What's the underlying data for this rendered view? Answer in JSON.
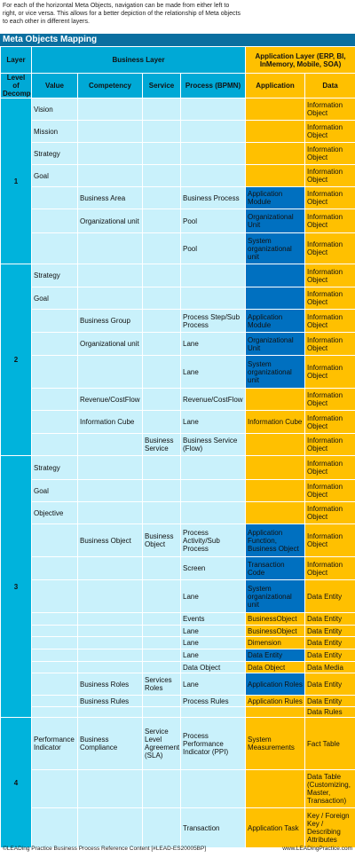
{
  "intro": "For each of the horizontal Meta Objects, navigation can be made from either left to right, or vice versa. This allows for a better depiction of the relationship of Meta objects to each other in different layers.",
  "title": "Meta Objects Mapping",
  "header": {
    "layer": "Layer",
    "business_layer": "Business Layer",
    "application_layer": "Application Layer (ERP, BI, InMemory, Mobile, SOA)",
    "level": "Level of Decomp.",
    "columns": [
      "Value",
      "Competency",
      "Service",
      "Process (BPMN)",
      "Application",
      "Data"
    ]
  },
  "groups": [
    {
      "layer": "1",
      "rows": [
        {
          "cells": [
            "Vision",
            null,
            null,
            null,
            null,
            "Information Object"
          ],
          "app_color": "#ffc000"
        },
        {
          "cells": [
            "Mission",
            null,
            null,
            null,
            null,
            "Information Object"
          ],
          "app_color": "#ffc000"
        },
        {
          "cells": [
            "Strategy",
            null,
            null,
            null,
            null,
            "Information Object"
          ],
          "app_color": "#ffc000"
        },
        {
          "cells": [
            "Goal",
            null,
            null,
            null,
            null,
            "Information Object"
          ],
          "app_color": "#ffc000"
        },
        {
          "cells": [
            null,
            "Business Area",
            null,
            "Business Process",
            "Application Module",
            "Information Object"
          ],
          "app_color": "#0070c0"
        },
        {
          "cells": [
            null,
            "Organizational unit",
            null,
            "Pool",
            "Organizational Unit",
            "Information Object"
          ],
          "app_color": "#0070c0"
        },
        {
          "cells": [
            null,
            null,
            null,
            "Pool",
            "System organizational unit",
            "Information Object"
          ],
          "app_color": "#0070c0"
        }
      ]
    },
    {
      "layer": "2",
      "rows": [
        {
          "cells": [
            "Strategy",
            null,
            null,
            null,
            null,
            "Information Object"
          ],
          "app_color": "#0070c0"
        },
        {
          "cells": [
            "Goal",
            null,
            null,
            null,
            null,
            "Information Object"
          ],
          "app_color": "#0070c0"
        },
        {
          "cells": [
            null,
            "Business Group",
            null,
            "Process Step/Sub Process",
            "Application Module",
            "Information Object"
          ],
          "app_color": "#0070c0"
        },
        {
          "cells": [
            null,
            "Organizational unit",
            null,
            "Lane",
            "Organizational Unit",
            "Information Object"
          ],
          "app_color": "#0070c0"
        },
        {
          "cells": [
            null,
            null,
            null,
            "Lane",
            "System organizational unit",
            "Information Object"
          ],
          "app_color": "#0070c0"
        },
        {
          "cells": [
            null,
            "Revenue/CostFlow",
            null,
            "Revenue/CostFlow",
            null,
            "Information Object"
          ],
          "app_color": "#ffc000"
        },
        {
          "cells": [
            null,
            "Information Cube",
            null,
            "Lane",
            "Information Cube",
            "Information Object"
          ],
          "app_color": "#ffc000"
        },
        {
          "cells": [
            null,
            null,
            "Business Service",
            "Business Service (Flow)",
            null,
            "Information Object"
          ],
          "app_color": "#ffc000"
        }
      ]
    },
    {
      "layer": "3",
      "rows": [
        {
          "cells": [
            "Strategy",
            null,
            null,
            null,
            null,
            "Information Object"
          ],
          "app_color": "#ffc000"
        },
        {
          "cells": [
            "Goal",
            null,
            null,
            null,
            null,
            "Information Object"
          ],
          "app_color": "#ffc000"
        },
        {
          "cells": [
            "Objective",
            null,
            null,
            null,
            null,
            "Information Object"
          ],
          "app_color": "#ffc000"
        },
        {
          "cells": [
            null,
            "Business Object",
            "Business Object",
            "Process Activity/Sub Process",
            "Application Function, Business Object",
            "Information Object"
          ],
          "app_color": "#0070c0"
        },
        {
          "cells": [
            null,
            null,
            null,
            "Screen",
            "Transaction Code",
            "Information Object"
          ],
          "app_color": "#0070c0"
        },
        {
          "cells": [
            null,
            null,
            null,
            "Lane",
            "System organizational unit",
            "Data Entity"
          ],
          "app_color": "#0070c0"
        },
        {
          "cells": [
            null,
            null,
            null,
            "Events",
            "BusinessObject",
            "Data Entity"
          ],
          "app_color": "#ffc000"
        },
        {
          "cells": [
            null,
            null,
            null,
            "Lane",
            "BusinessObject",
            "Data Entity"
          ],
          "app_color": "#ffc000"
        },
        {
          "cells": [
            null,
            null,
            null,
            "Lane",
            "Dimension",
            "Data Entity"
          ],
          "app_color": "#ffc000"
        },
        {
          "cells": [
            null,
            null,
            null,
            "Lane",
            "Data Entity",
            "Data Entity"
          ],
          "app_color": "#0070c0"
        },
        {
          "cells": [
            null,
            null,
            null,
            "Data Object",
            "Data Object",
            "Data Media"
          ],
          "app_color": "#ffc000"
        },
        {
          "cells": [
            null,
            "Business Roles",
            "Services Roles",
            "Lane",
            "Application Roles",
            "Data Entity"
          ],
          "app_color": "#0070c0"
        },
        {
          "cells": [
            null,
            "Business Rules",
            null,
            "Process Rules",
            "Application Rules",
            "Data Entity"
          ],
          "app_color": "#ffc000"
        },
        {
          "cells": [
            null,
            null,
            null,
            null,
            null,
            "Data Rules"
          ],
          "app_color": "#ffc000"
        }
      ]
    },
    {
      "layer": "4",
      "rows": [
        {
          "cells": [
            "Performance Indicator",
            "Business Compliance",
            "Service Level Agreement (SLA)",
            "Process Performance Indicator (PPI)",
            "System Measurements",
            "Fact Table"
          ],
          "app_color": "#ffc000"
        },
        {
          "cells": [
            null,
            null,
            null,
            null,
            null,
            "Data Table (Customizing, Master, Transaction)"
          ],
          "app_color": "#ffc000"
        },
        {
          "cells": [
            null,
            null,
            null,
            "Transaction",
            "Application Task",
            "Key / Foreign Key / Describing Attributes"
          ],
          "app_color": "#ffc000"
        }
      ]
    }
  ],
  "footer": {
    "left": "©LEADing Practice Business Process Reference Content [#LEAD-ES20005BP]",
    "right": "www.LEADingPractice.com"
  }
}
